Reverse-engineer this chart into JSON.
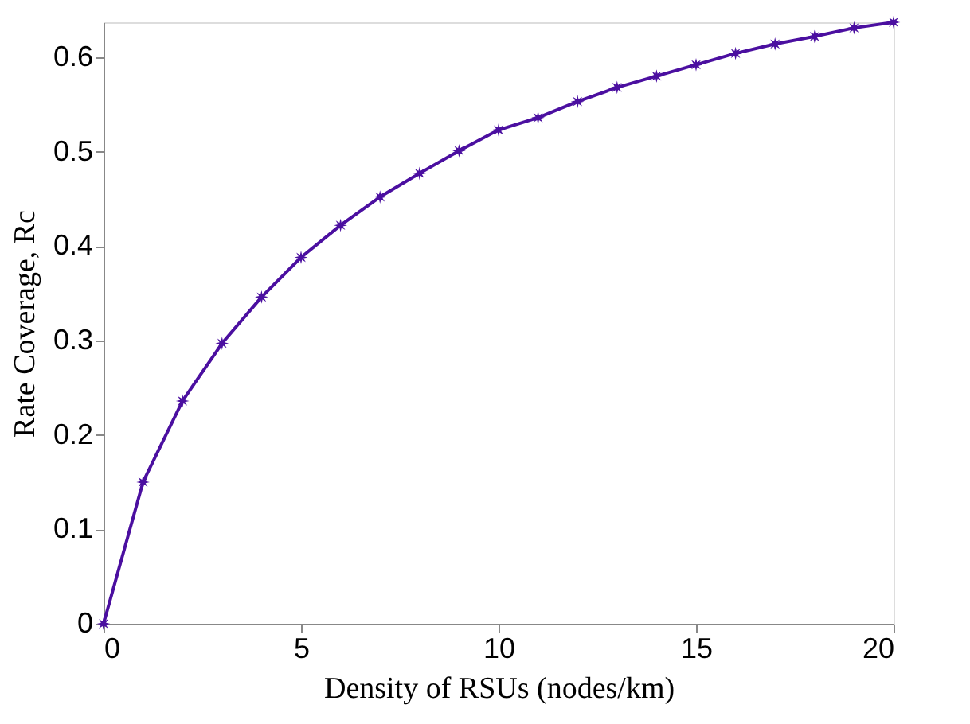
{
  "chart_data": {
    "type": "line",
    "xlabel": "Density of RSUs (nodes/km)",
    "ylabel": "Rate Coverage, Rc",
    "x": [
      0,
      1,
      2,
      3,
      4,
      5,
      6,
      7,
      8,
      9,
      10,
      11,
      12,
      13,
      14,
      15,
      16,
      17,
      18,
      19,
      20
    ],
    "series": [
      {
        "color": "#4b0fa0",
        "values": [
          0,
          0.15,
          0.236,
          0.297,
          0.346,
          0.388,
          0.422,
          0.452,
          0.477,
          0.501,
          0.523,
          0.536,
          0.553,
          0.568,
          0.58,
          0.592,
          0.604,
          0.614,
          0.622,
          0.631,
          0.637
        ]
      }
    ],
    "xlim": [
      0,
      20
    ],
    "xticks": [
      0,
      5,
      10,
      15,
      20
    ],
    "ylim": [
      0,
      0.637
    ],
    "yticks": [
      0,
      0.1,
      0.2,
      0.3,
      0.4,
      0.5,
      0.6
    ],
    "grid": false,
    "legend": false,
    "marker": "star",
    "line_style": "solid"
  }
}
